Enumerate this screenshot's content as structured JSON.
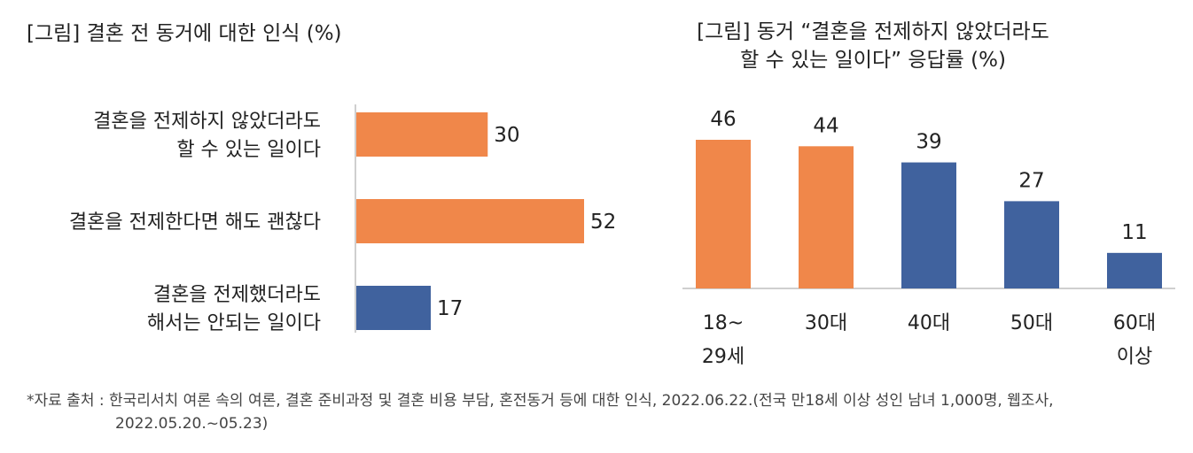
{
  "source": {
    "line1": "*자료 출처 : 한국리서치 여론 속의 여론, 결혼 준비과정 및 결혼 비용 부담, 혼전동거 등에 대한 인식, 2022.06.22.(전국 만18세 이상 성인 남녀 1,000명, 웹조사,",
    "line2": "2022.05.20.~05.23)"
  },
  "colors": {
    "orange": "#F0874A",
    "blue": "#40629E",
    "axis": "#bfbfbf"
  },
  "chart_data": [
    {
      "type": "bar",
      "orientation": "horizontal",
      "title": "[그림] 결혼 전 동거에 대한 인식 (%)",
      "categories": [
        [
          "결혼을 전제하지 않았더라도",
          "할 수 있는 일이다"
        ],
        [
          "결혼을 전제한다면 해도 괜찮다"
        ],
        [
          "결혼을 전제했더라도",
          "해서는 안되는 일이다"
        ]
      ],
      "values": [
        30,
        52,
        17
      ],
      "bar_colors": [
        "#F0874A",
        "#F0874A",
        "#40629E"
      ],
      "xlim": [
        0,
        60
      ],
      "grid": false
    },
    {
      "type": "bar",
      "orientation": "vertical",
      "title_lines": [
        "[그림] 동거 “결혼을 전제하지 않았더라도",
        "할 수 있는 일이다” 응답률 (%)"
      ],
      "categories": [
        [
          "18~",
          "29세"
        ],
        [
          "30대"
        ],
        [
          "40대"
        ],
        [
          "50대"
        ],
        [
          "60대",
          "이상"
        ]
      ],
      "values": [
        46,
        44,
        39,
        27,
        11
      ],
      "bar_colors": [
        "#F0874A",
        "#F0874A",
        "#40629E",
        "#40629E",
        "#40629E"
      ],
      "ylim": [
        0,
        50
      ],
      "grid": false
    }
  ]
}
